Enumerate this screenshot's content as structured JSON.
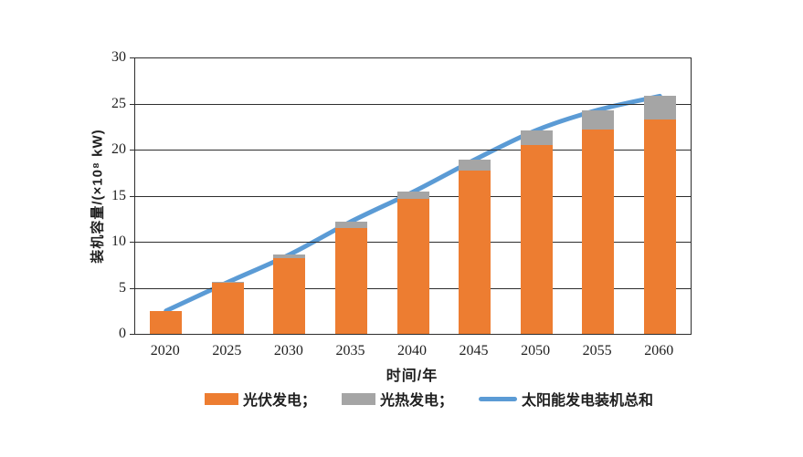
{
  "chart_data": {
    "type": "bar",
    "subtype": "stacked-bars-with-smooth-line-overlay",
    "categories": [
      "2020",
      "2025",
      "2030",
      "2035",
      "2040",
      "2045",
      "2050",
      "2055",
      "2060"
    ],
    "series": [
      {
        "name": "光伏发电",
        "render": "bar",
        "color": "#ED7D31",
        "values": [
          2.5,
          5.5,
          8.2,
          11.5,
          14.7,
          17.7,
          20.5,
          22.2,
          23.3
        ]
      },
      {
        "name": "光热发电",
        "render": "bar",
        "color": "#A5A5A5",
        "values": [
          0.0,
          0.1,
          0.4,
          0.7,
          0.7,
          1.2,
          1.6,
          2.1,
          2.5
        ]
      },
      {
        "name": "太阳能发电装机总和",
        "render": "line",
        "color": "#5B9BD5",
        "values": [
          2.5,
          5.6,
          8.6,
          12.2,
          15.4,
          18.9,
          22.1,
          24.3,
          25.8
        ]
      }
    ],
    "title": "",
    "xlabel": "时间/年",
    "ylabel": "装机容量/(×10⁸ kW)",
    "ylim": [
      0,
      30
    ],
    "ytick_step": 5,
    "grid": true,
    "legend_position": "bottom"
  },
  "axes": {
    "y_ticks": [
      "0",
      "5",
      "10",
      "15",
      "20",
      "25",
      "30"
    ],
    "x_ticks": [
      "2020",
      "2025",
      "2030",
      "2035",
      "2040",
      "2045",
      "2050",
      "2055",
      "2060"
    ]
  },
  "legend": {
    "items": [
      {
        "label": "光伏发电；",
        "swatch": "bar",
        "color": "#ED7D31"
      },
      {
        "label": "光热发电；",
        "swatch": "bar",
        "color": "#A5A5A5"
      },
      {
        "label": "太阳能发电装机总和",
        "swatch": "line",
        "color": "#5B9BD5"
      }
    ]
  },
  "colors": {
    "pv_bar": "#ED7D31",
    "csp_bar": "#A5A5A5",
    "total_line": "#5B9BD5",
    "grid": "#2e2e2e",
    "text": "#1f1f1f",
    "background": "#ffffff"
  }
}
